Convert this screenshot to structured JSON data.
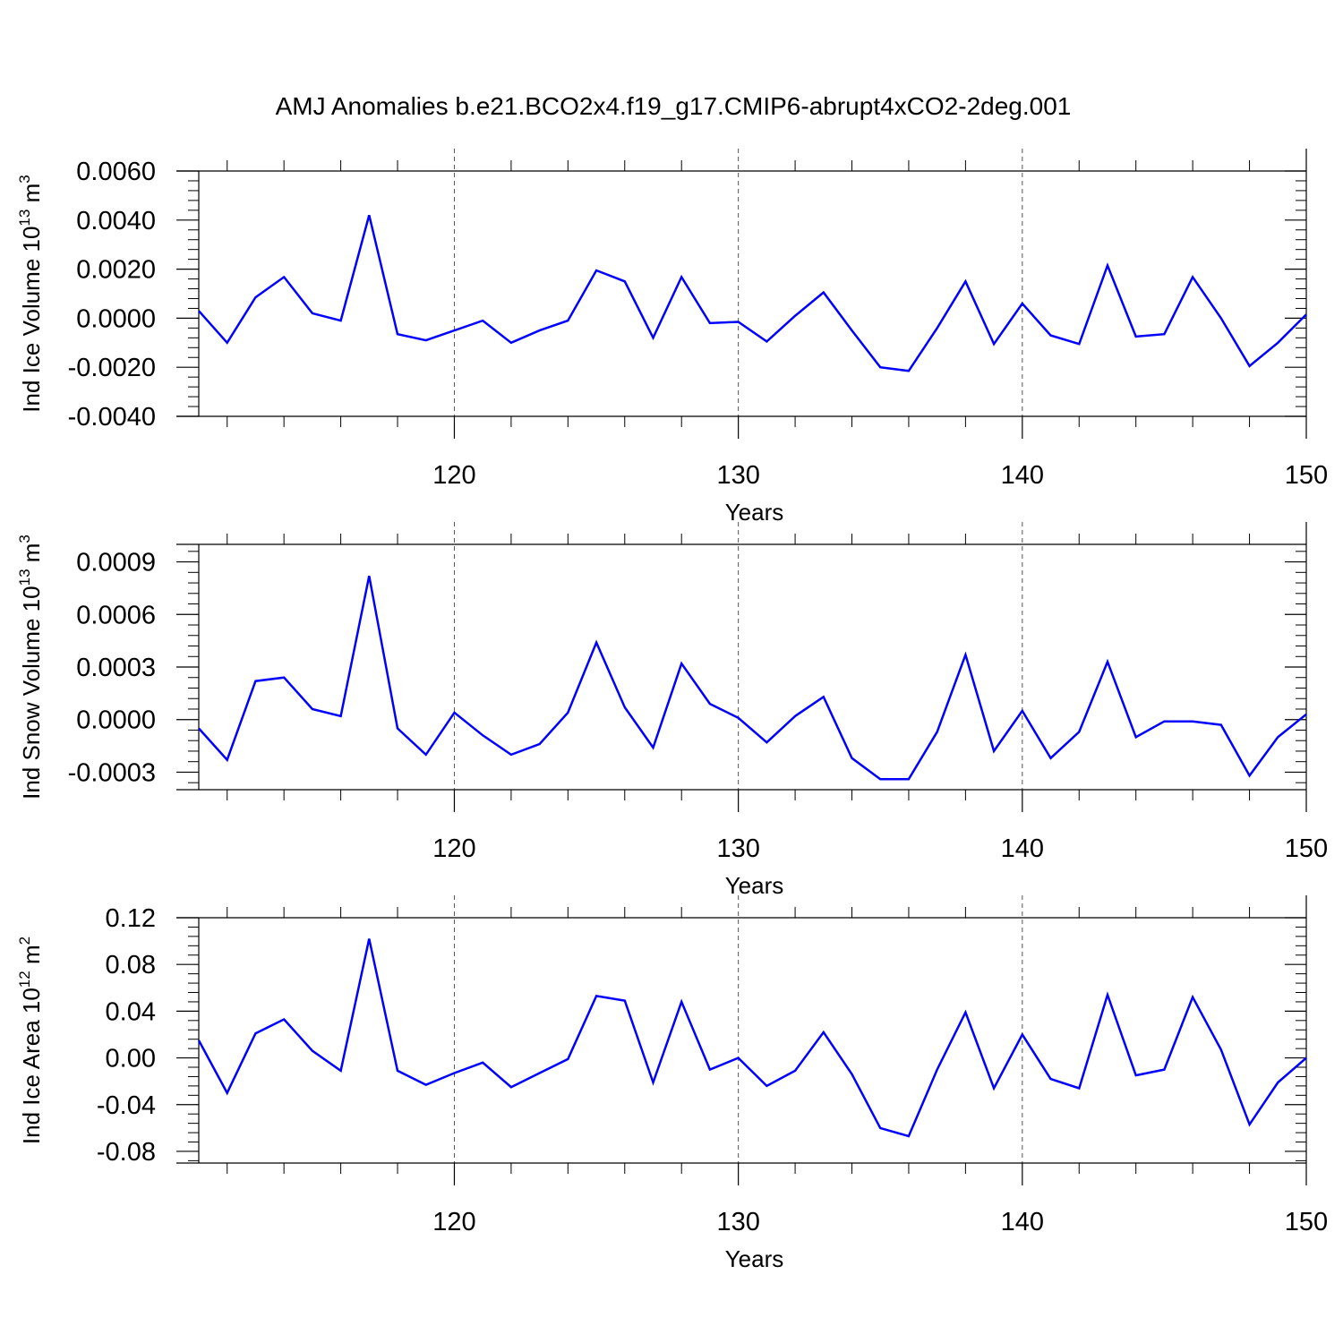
{
  "title": "AMJ Anomalies b.e21.BCO2x4.f19_g17.CMIP6-abrupt4xCO2-2deg.001",
  "line_color": "#0000ff",
  "chart_data": [
    {
      "type": "line",
      "ylabel_main": "Ind Ice Volume 10",
      "ylabel_exp": "13",
      "ylabel_unit": " m",
      "ylabel_unit_exp": "3",
      "xlabel": "Years",
      "xlim": [
        111,
        150
      ],
      "ylim": [
        -0.004,
        0.006
      ],
      "yticks": [
        -0.004,
        -0.002,
        0.0,
        0.002,
        0.004,
        0.006
      ],
      "ytick_labels": [
        "-0.0040",
        "-0.0020",
        "0.0000",
        "0.0020",
        "0.0040",
        "0.0060"
      ],
      "xticks": [
        120,
        130,
        140,
        150
      ],
      "xtick_labels": [
        "120",
        "130",
        "140",
        "150"
      ],
      "grid_x": [
        120,
        130,
        140
      ],
      "x": [
        111,
        112,
        113,
        114,
        115,
        116,
        117,
        118,
        119,
        120,
        121,
        122,
        123,
        124,
        125,
        126,
        127,
        128,
        129,
        130,
        131,
        132,
        133,
        134,
        135,
        136,
        137,
        138,
        139,
        140,
        141,
        142,
        143,
        144,
        145,
        146,
        147,
        148,
        149,
        150
      ],
      "series": [
        {
          "values": [
            0.0003,
            -0.001,
            0.00085,
            0.00168,
            0.0002,
            -0.0001,
            0.0042,
            -0.00065,
            -0.0009,
            -0.0005,
            -0.0001,
            -0.001,
            -0.0005,
            -0.0001,
            0.00195,
            0.0015,
            -0.0008,
            0.00168,
            -0.0002,
            -0.00015,
            -0.00095,
            0.0001,
            0.00105,
            -0.0005,
            -0.002,
            -0.00215,
            -0.0004,
            0.0015,
            -0.00105,
            0.0006,
            -0.0007,
            -0.00105,
            0.00215,
            -0.00075,
            -0.00065,
            0.00168,
            0.0,
            -0.00195,
            -0.001,
            0.00015
          ]
        }
      ]
    },
    {
      "type": "line",
      "ylabel_main": "Ind Snow Volume 10",
      "ylabel_exp": "13",
      "ylabel_unit": " m",
      "ylabel_unit_exp": "3",
      "xlabel": "Years",
      "xlim": [
        111,
        150
      ],
      "ylim": [
        -0.0004,
        0.001
      ],
      "yticks": [
        -0.0003,
        0.0,
        0.0003,
        0.0006,
        0.0009
      ],
      "ytick_labels": [
        "-0.0003",
        "0.0000",
        "0.0003",
        "0.0006",
        "0.0009"
      ],
      "xticks": [
        120,
        130,
        140,
        150
      ],
      "xtick_labels": [
        "120",
        "130",
        "140",
        "150"
      ],
      "grid_x": [
        120,
        130,
        140
      ],
      "x": [
        111,
        112,
        113,
        114,
        115,
        116,
        117,
        118,
        119,
        120,
        121,
        122,
        123,
        124,
        125,
        126,
        127,
        128,
        129,
        130,
        131,
        132,
        133,
        134,
        135,
        136,
        137,
        138,
        139,
        140,
        141,
        142,
        143,
        144,
        145,
        146,
        147,
        148,
        149,
        150
      ],
      "series": [
        {
          "values": [
            -5e-05,
            -0.00023,
            0.00022,
            0.00024,
            6e-05,
            2e-05,
            0.00082,
            -5e-05,
            -0.0002,
            4e-05,
            -9e-05,
            -0.0002,
            -0.00014,
            4e-05,
            0.00044,
            7e-05,
            -0.00016,
            0.00032,
            9e-05,
            1e-05,
            -0.00013,
            2e-05,
            0.00013,
            -0.00022,
            -0.00034,
            -0.00034,
            -7e-05,
            0.00037,
            -0.00018,
            5e-05,
            -0.00022,
            -7e-05,
            0.00033,
            -0.0001,
            -1e-05,
            -1e-05,
            -3e-05,
            -0.00032,
            -0.0001,
            3e-05
          ]
        }
      ]
    },
    {
      "type": "line",
      "ylabel_main": "Ind Ice Area 10",
      "ylabel_exp": "12",
      "ylabel_unit": " m",
      "ylabel_unit_exp": "2",
      "xlabel": "Years",
      "xlim": [
        111,
        150
      ],
      "ylim": [
        -0.09,
        0.12
      ],
      "yticks": [
        -0.08,
        -0.04,
        0.0,
        0.04,
        0.08,
        0.12
      ],
      "ytick_labels": [
        "-0.08",
        "-0.04",
        "0.00",
        "0.04",
        "0.08",
        "0.12"
      ],
      "xticks": [
        120,
        130,
        140,
        150
      ],
      "xtick_labels": [
        "120",
        "130",
        "140",
        "150"
      ],
      "grid_x": [
        120,
        130,
        140
      ],
      "x": [
        111,
        112,
        113,
        114,
        115,
        116,
        117,
        118,
        119,
        120,
        121,
        122,
        123,
        124,
        125,
        126,
        127,
        128,
        129,
        130,
        131,
        132,
        133,
        134,
        135,
        136,
        137,
        138,
        139,
        140,
        141,
        142,
        143,
        144,
        145,
        146,
        147,
        148,
        149,
        150
      ],
      "series": [
        {
          "values": [
            0.015,
            -0.03,
            0.021,
            0.033,
            0.006,
            -0.011,
            0.102,
            -0.011,
            -0.023,
            -0.013,
            -0.004,
            -0.025,
            -0.013,
            -0.001,
            0.053,
            0.049,
            -0.021,
            0.048,
            -0.01,
            0.0,
            -0.024,
            -0.011,
            0.022,
            -0.014,
            -0.06,
            -0.067,
            -0.01,
            0.039,
            -0.026,
            0.02,
            -0.018,
            -0.026,
            0.054,
            -0.015,
            -0.01,
            0.052,
            0.007,
            -0.057,
            -0.021,
            0.0
          ]
        }
      ]
    }
  ]
}
